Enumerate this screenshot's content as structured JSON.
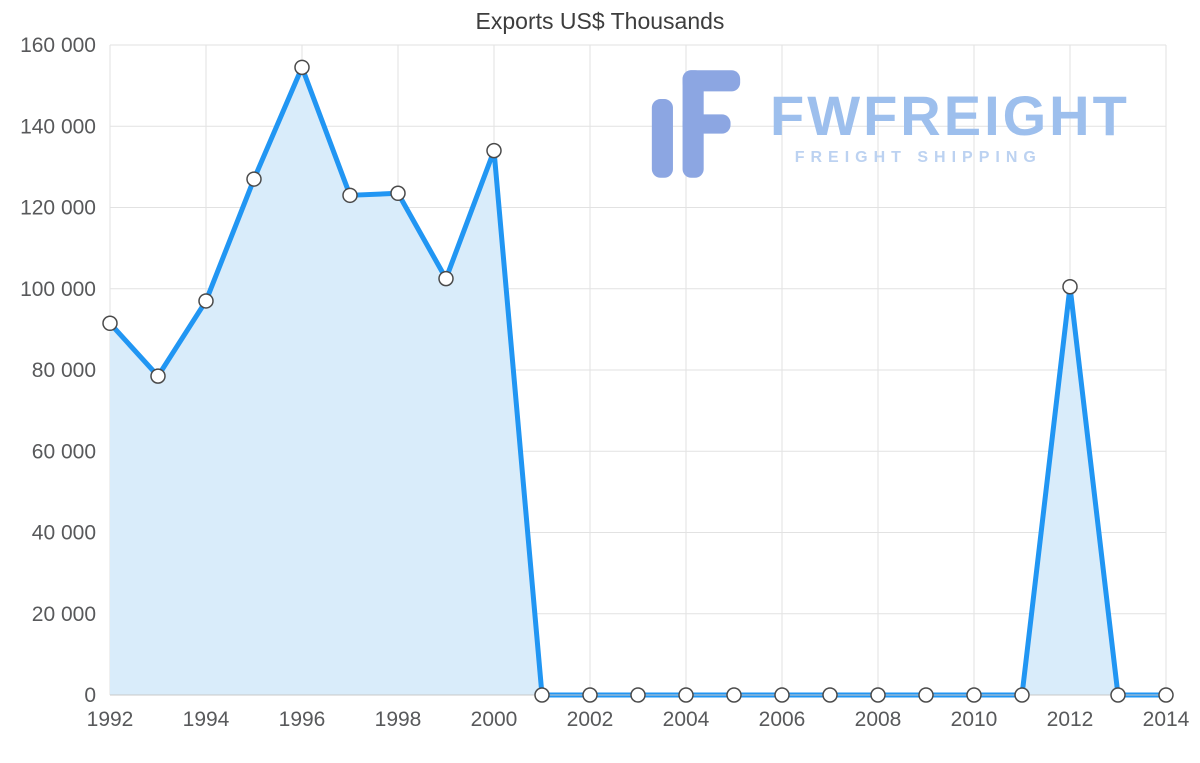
{
  "chart_data": {
    "type": "area",
    "title": "Exports US$ Thousands",
    "x": [
      1992,
      1993,
      1994,
      1995,
      1996,
      1997,
      1998,
      1999,
      2000,
      2001,
      2002,
      2003,
      2004,
      2005,
      2006,
      2007,
      2008,
      2009,
      2010,
      2011,
      2012,
      2013,
      2014
    ],
    "values": [
      91500,
      78500,
      97000,
      127000,
      154500,
      123000,
      123500,
      102500,
      134000,
      0,
      0,
      0,
      0,
      0,
      0,
      0,
      0,
      0,
      0,
      0,
      100500,
      0,
      0
    ],
    "ylim": [
      0,
      160000
    ],
    "ytick_values": [
      0,
      20000,
      40000,
      60000,
      80000,
      100000,
      120000,
      140000,
      160000
    ],
    "ytick_labels": [
      "0",
      "20 000",
      "40 000",
      "60 000",
      "80 000",
      "100 000",
      "120 000",
      "140 000",
      "160 000"
    ],
    "xtick_values": [
      1992,
      1994,
      1996,
      1998,
      2000,
      2002,
      2004,
      2006,
      2008,
      2010,
      2012,
      2014
    ],
    "xtick_labels": [
      "1992",
      "1994",
      "1996",
      "1998",
      "2000",
      "2002",
      "2004",
      "2006",
      "2008",
      "2010",
      "2012",
      "2014"
    ],
    "grid": true,
    "legend": "none",
    "xlabel": "",
    "ylabel": ""
  },
  "logo": {
    "name": "FWFREIGHT",
    "tagline": "FREIGHT SHIPPING"
  },
  "colors": {
    "line": "#2196f3",
    "fill": "#d9ecfa",
    "marker_fill": "#ffffff",
    "marker_stroke": "#4a4a4a",
    "grid": "#e2e2e2",
    "axis_line": "#c8c8c8",
    "axis_text": "#58595b",
    "title_text": "#3d3d3d",
    "logo_icon": "#8ca6e2",
    "logo_text": "#9dbfed",
    "logo_tagline": "#bcd2f1"
  }
}
